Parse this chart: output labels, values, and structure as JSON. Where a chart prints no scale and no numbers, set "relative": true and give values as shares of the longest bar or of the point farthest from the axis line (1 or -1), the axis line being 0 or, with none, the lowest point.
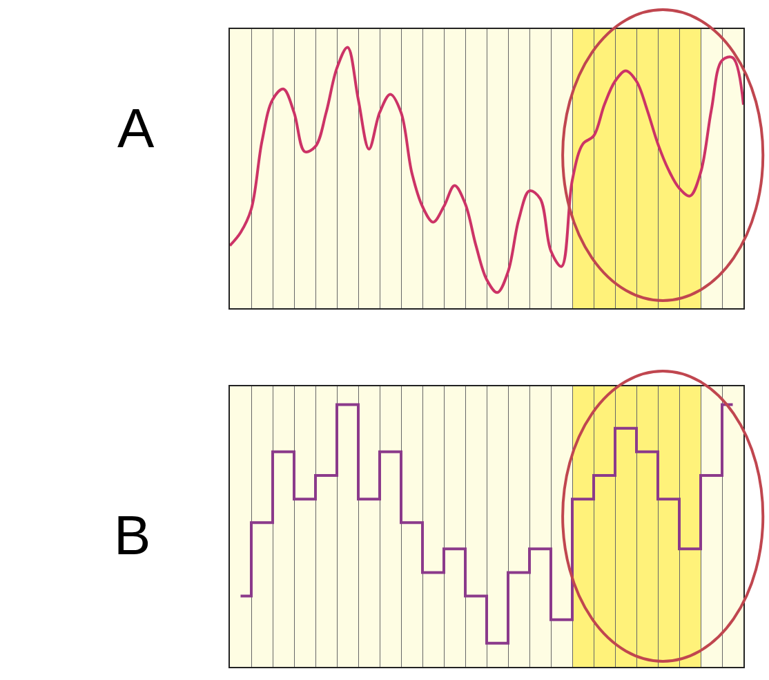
{
  "chart_data": [
    {
      "type": "line",
      "title": "A",
      "relative": true,
      "grid": "x",
      "color": "#cc3366",
      "categories": [
        null,
        null,
        null,
        null,
        null,
        null,
        null,
        null,
        null,
        null,
        null,
        null,
        null,
        null,
        null,
        null,
        null,
        null,
        null,
        null,
        null,
        null,
        null,
        null,
        null,
        null,
        null,
        null,
        null,
        null,
        null,
        null,
        null,
        null,
        null,
        null,
        null,
        null,
        null,
        null,
        null,
        null,
        null,
        null,
        null,
        null,
        null,
        null,
        null
      ],
      "values": [
        0.24,
        0.29,
        0.38,
        0.64,
        0.8,
        0.84,
        0.75,
        0.6,
        0.62,
        0.75,
        0.92,
        1,
        0.8,
        0.61,
        0.75,
        0.82,
        0.75,
        0.52,
        0.39,
        0.33,
        0.39,
        0.47,
        0.4,
        0.24,
        0.11,
        0.06,
        0.14,
        0.34,
        0.45,
        0.42,
        0.22,
        0.16,
        0.49,
        0.63,
        0.66,
        0.78,
        0.87,
        0.91,
        0.87,
        0.76,
        0.63,
        0.53,
        0.46,
        0.43,
        0.52,
        0.76,
        0.95,
        0.96,
        0.78
      ]
    },
    {
      "type": "step",
      "title": "B",
      "relative": true,
      "grid": "x",
      "color": "#8b3a8b",
      "categories": [
        null,
        null,
        null,
        null,
        null,
        null,
        null,
        null,
        null,
        null,
        null,
        null,
        null,
        null,
        null,
        null,
        null,
        null,
        null,
        null,
        null,
        null,
        null,
        null
      ],
      "values": [
        0.27,
        0.55,
        0.82,
        0.64,
        0.73,
        1,
        0.64,
        0.82,
        0.55,
        0.36,
        0.45,
        0.27,
        0.09,
        0.36,
        0.45,
        0.18,
        0.64,
        0.73,
        0.91,
        0.82,
        0.64,
        0.45,
        0.73,
        1
      ]
    }
  ]
}
